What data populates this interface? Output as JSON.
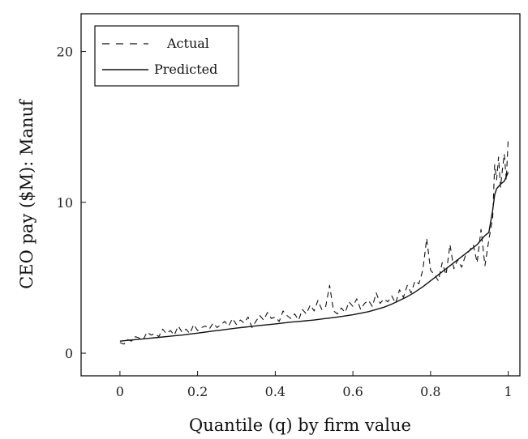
{
  "chart_data": {
    "type": "line",
    "title": "",
    "xlabel": "Quantile (q) by firm value",
    "ylabel": "CEO pay ($M): Manuf",
    "xlim": [
      -0.1,
      1.03
    ],
    "ylim": [
      -1.5,
      22.5
    ],
    "xticks": [
      0,
      0.2,
      0.4,
      0.6,
      0.8,
      1
    ],
    "xtick_labels": [
      "0",
      "0.2",
      "0.4",
      "0.6",
      "0.8",
      "1"
    ],
    "yticks": [
      0,
      10,
      20
    ],
    "ytick_labels": [
      "0",
      "10",
      "20"
    ],
    "grid": false,
    "legend_position": "top-left",
    "series": [
      {
        "name": "Actual",
        "style": "dashed",
        "x": [
          0.0,
          0.01,
          0.02,
          0.03,
          0.04,
          0.05,
          0.06,
          0.07,
          0.08,
          0.09,
          0.1,
          0.11,
          0.12,
          0.13,
          0.14,
          0.15,
          0.16,
          0.17,
          0.18,
          0.19,
          0.2,
          0.21,
          0.22,
          0.23,
          0.24,
          0.25,
          0.26,
          0.27,
          0.28,
          0.29,
          0.3,
          0.31,
          0.32,
          0.33,
          0.34,
          0.35,
          0.36,
          0.37,
          0.38,
          0.39,
          0.4,
          0.41,
          0.42,
          0.43,
          0.44,
          0.45,
          0.46,
          0.47,
          0.48,
          0.49,
          0.5,
          0.51,
          0.52,
          0.53,
          0.54,
          0.55,
          0.56,
          0.57,
          0.58,
          0.59,
          0.6,
          0.61,
          0.62,
          0.63,
          0.64,
          0.65,
          0.66,
          0.67,
          0.68,
          0.69,
          0.7,
          0.71,
          0.72,
          0.73,
          0.74,
          0.75,
          0.76,
          0.77,
          0.78,
          0.79,
          0.8,
          0.81,
          0.82,
          0.83,
          0.84,
          0.85,
          0.86,
          0.87,
          0.88,
          0.89,
          0.9,
          0.91,
          0.92,
          0.93,
          0.94,
          0.95,
          0.96,
          0.965,
          0.97,
          0.975,
          0.98,
          0.985,
          0.99,
          0.995,
          1.0
        ],
        "y": [
          0.7,
          0.6,
          0.9,
          0.8,
          1.1,
          1.0,
          0.9,
          1.4,
          1.2,
          1.3,
          1.1,
          1.6,
          1.3,
          1.5,
          1.2,
          1.8,
          1.4,
          1.6,
          1.3,
          1.9,
          1.5,
          1.7,
          1.8,
          1.6,
          2.0,
          1.7,
          1.9,
          2.1,
          1.8,
          2.3,
          1.9,
          2.2,
          2.0,
          2.4,
          1.7,
          2.1,
          2.5,
          2.2,
          2.7,
          2.3,
          2.4,
          2.1,
          2.8,
          2.5,
          2.3,
          2.6,
          2.2,
          2.9,
          2.6,
          3.2,
          2.8,
          3.5,
          2.9,
          3.1,
          4.5,
          2.8,
          2.6,
          3.0,
          2.7,
          3.4,
          3.1,
          3.6,
          2.9,
          3.3,
          3.5,
          3.1,
          4.0,
          3.3,
          3.6,
          3.4,
          3.8,
          3.3,
          4.2,
          3.7,
          4.5,
          4.0,
          4.8,
          4.6,
          5.5,
          7.6,
          5.5,
          5.2,
          4.8,
          6.0,
          5.2,
          7.2,
          5.6,
          6.2,
          5.7,
          6.5,
          6.8,
          7.2,
          6.0,
          8.2,
          5.8,
          7.5,
          9.0,
          12.5,
          11.5,
          13.0,
          11.0,
          12.2,
          13.2,
          11.5,
          14.2
        ]
      },
      {
        "name": "Predicted",
        "style": "solid",
        "x": [
          0.0,
          0.02,
          0.04,
          0.06,
          0.08,
          0.1,
          0.12,
          0.14,
          0.16,
          0.18,
          0.2,
          0.22,
          0.24,
          0.26,
          0.28,
          0.3,
          0.32,
          0.34,
          0.36,
          0.38,
          0.4,
          0.42,
          0.44,
          0.46,
          0.48,
          0.5,
          0.52,
          0.54,
          0.56,
          0.58,
          0.6,
          0.62,
          0.64,
          0.66,
          0.68,
          0.7,
          0.72,
          0.74,
          0.76,
          0.78,
          0.8,
          0.82,
          0.84,
          0.86,
          0.88,
          0.9,
          0.92,
          0.94,
          0.95,
          0.96,
          0.965,
          0.97,
          0.98,
          0.99,
          1.0
        ],
        "y": [
          0.8,
          0.85,
          0.9,
          0.95,
          1.0,
          1.05,
          1.1,
          1.15,
          1.2,
          1.27,
          1.33,
          1.4,
          1.47,
          1.53,
          1.6,
          1.66,
          1.72,
          1.78,
          1.84,
          1.89,
          1.94,
          2.0,
          2.06,
          2.1,
          2.15,
          2.2,
          2.27,
          2.33,
          2.4,
          2.47,
          2.55,
          2.65,
          2.75,
          2.9,
          3.05,
          3.25,
          3.5,
          3.75,
          4.05,
          4.4,
          4.8,
          5.2,
          5.6,
          6.0,
          6.4,
          6.8,
          7.2,
          7.8,
          8.0,
          9.5,
          10.5,
          10.9,
          11.2,
          11.4,
          12.0
        ]
      }
    ]
  }
}
